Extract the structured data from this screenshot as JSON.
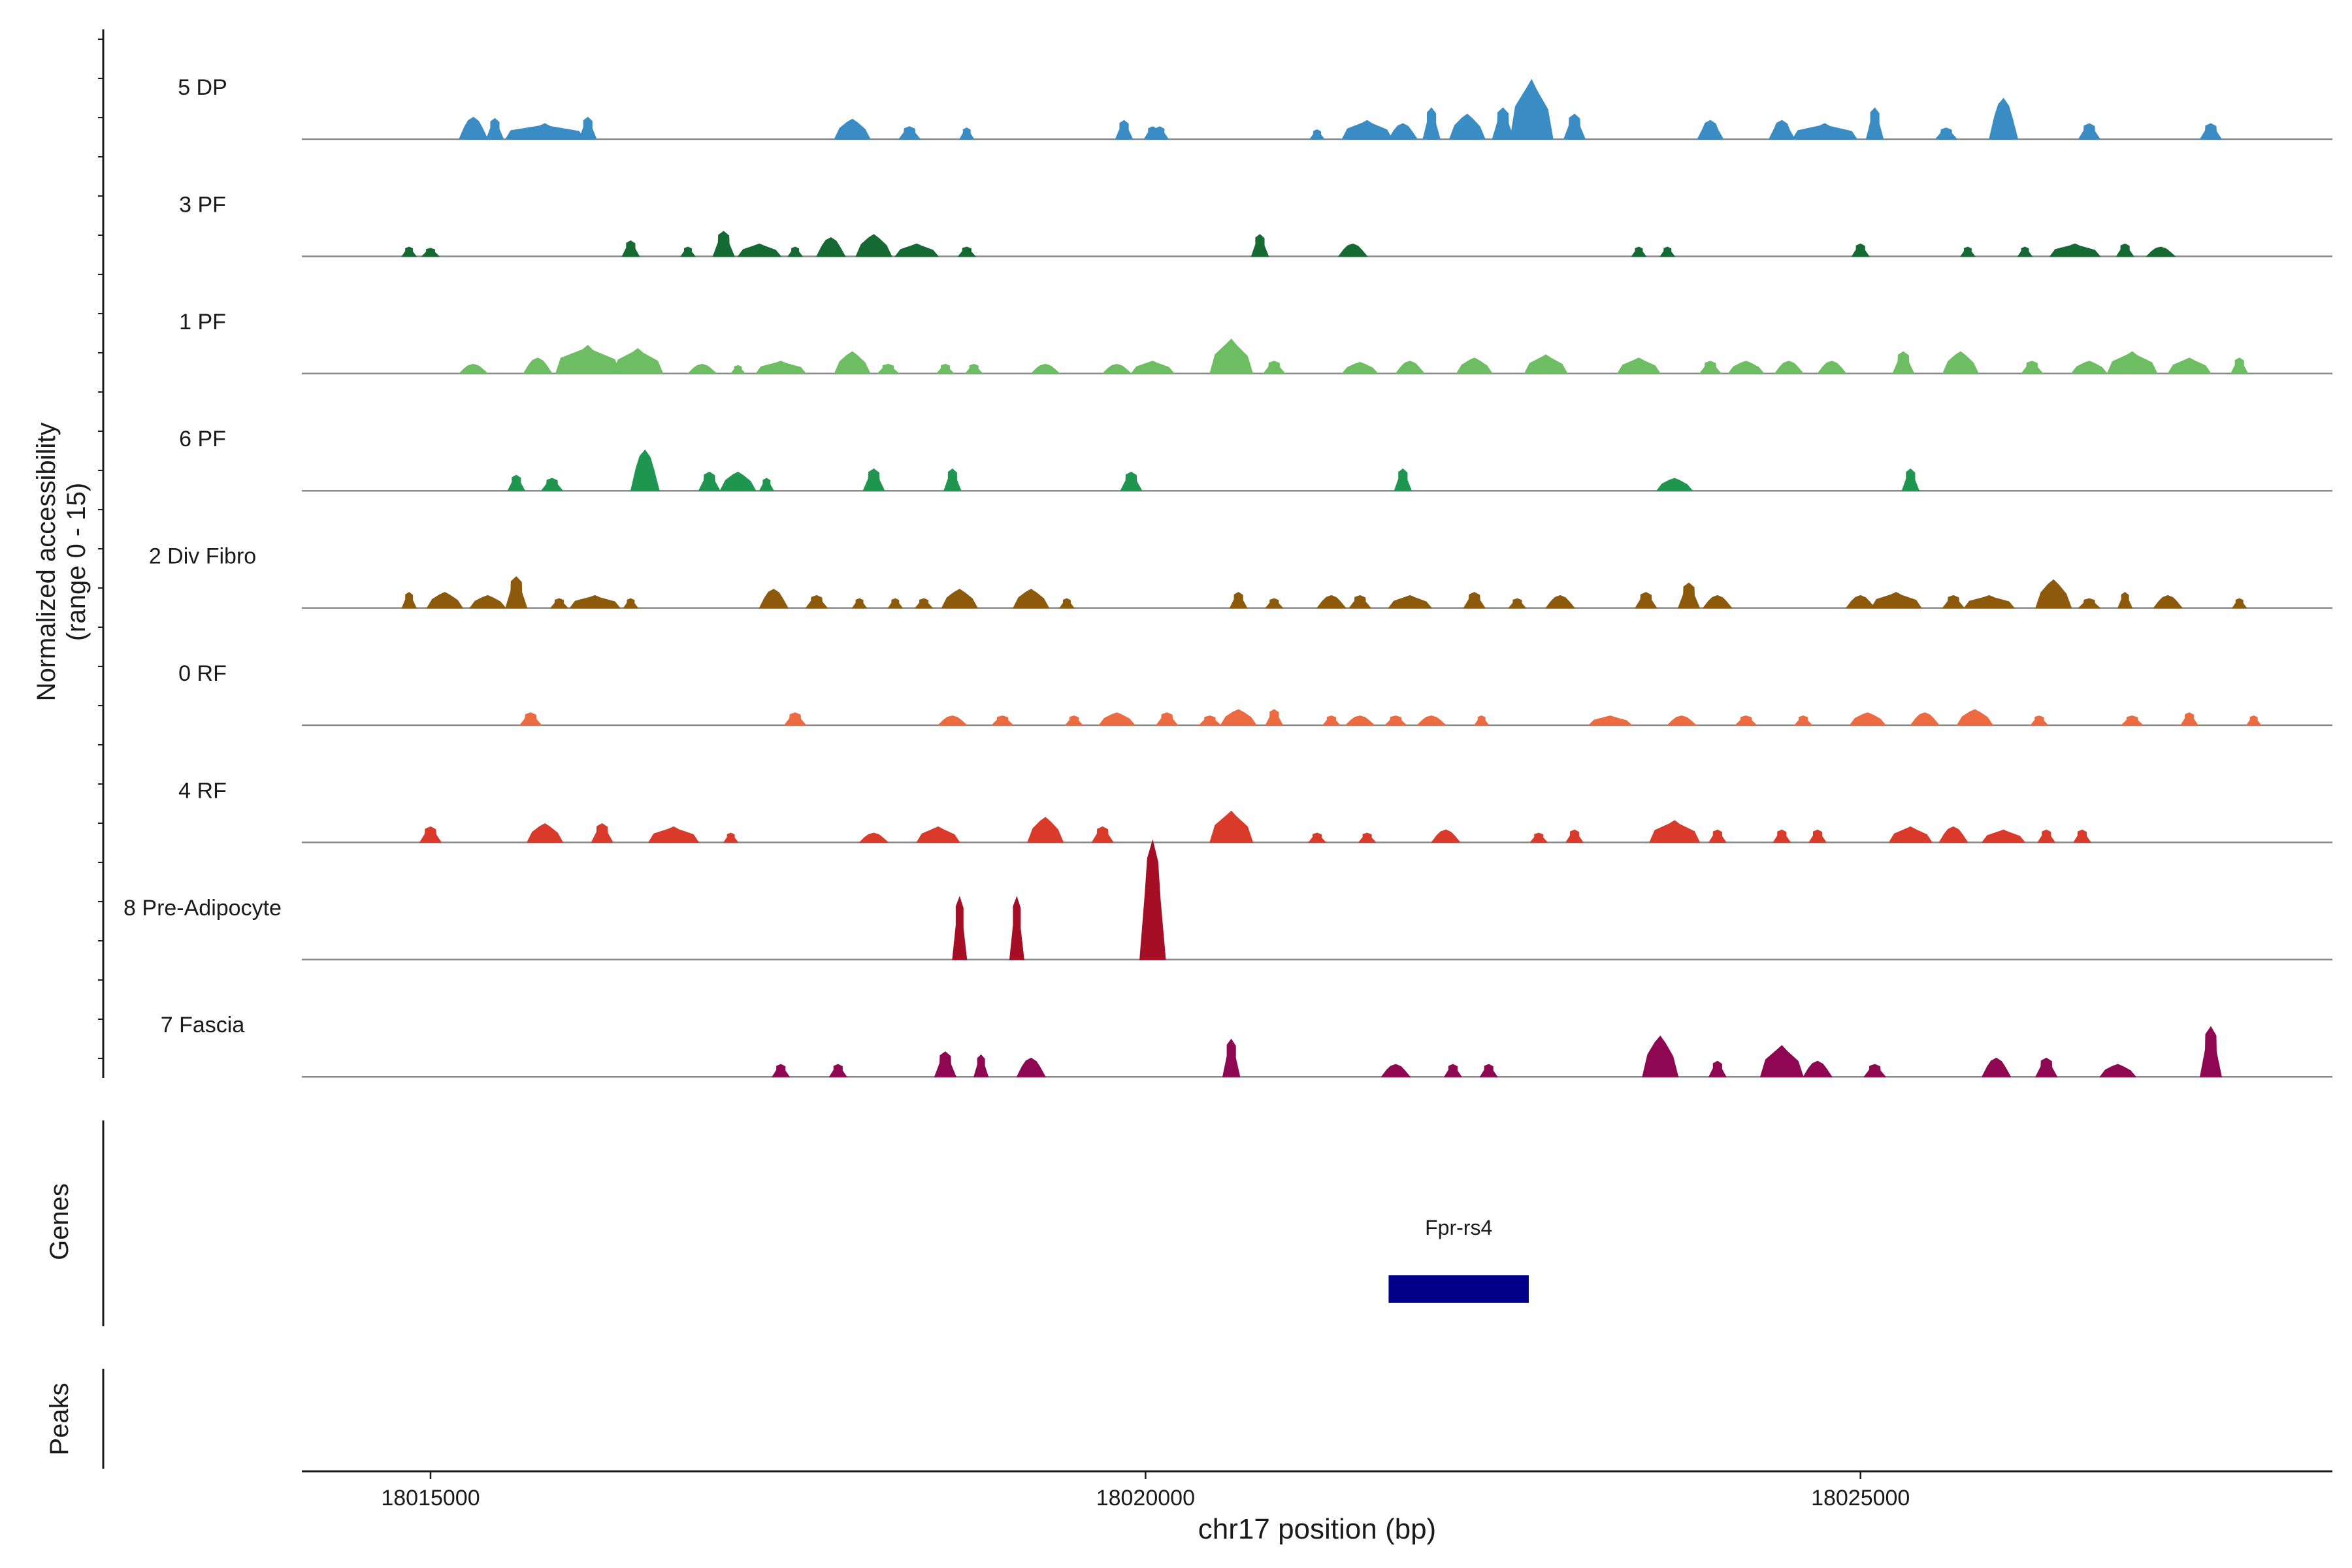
{
  "chart_data": {
    "type": "area",
    "title": "",
    "xlabel": "chr17 position (bp)",
    "ylabel": "Normalized accessibility",
    "ylabel_range": "(range 0 - 15)",
    "xlim": [
      18014100,
      18028300
    ],
    "ylim": [
      0,
      15
    ],
    "x_ticks": [
      18015000,
      18020000,
      18025000
    ],
    "x_tick_labels": [
      "18015000",
      "18020000",
      "18025000"
    ],
    "tracks": [
      {
        "name": "5 DP",
        "color": "#3a8cc4",
        "peaks": [
          [
            18015300,
            0.2,
            3.5
          ],
          [
            18015450,
            0.12,
            3.3
          ],
          [
            18015800,
            0.55,
            2.5
          ],
          [
            18016100,
            0.12,
            3.5
          ],
          [
            18017950,
            0.25,
            3.2
          ],
          [
            18018350,
            0.15,
            2.0
          ],
          [
            18018750,
            0.1,
            1.8
          ],
          [
            18019850,
            0.12,
            3.0
          ],
          [
            18020050,
            0.12,
            2.0
          ],
          [
            18020100,
            0.12,
            2.0
          ],
          [
            18021200,
            0.1,
            1.5
          ],
          [
            18021550,
            0.35,
            3.0
          ],
          [
            18021800,
            0.2,
            2.5
          ],
          [
            18022000,
            0.12,
            5.0
          ],
          [
            18022250,
            0.25,
            4.0
          ],
          [
            18022700,
            0.3,
            9.5
          ],
          [
            18022500,
            0.15,
            5.0
          ],
          [
            18023000,
            0.15,
            4.0
          ],
          [
            18023950,
            0.18,
            3.0
          ],
          [
            18024450,
            0.18,
            3.0
          ],
          [
            18024750,
            0.45,
            2.5
          ],
          [
            18025100,
            0.12,
            5.0
          ],
          [
            18025600,
            0.15,
            1.8
          ],
          [
            18026000,
            0.2,
            6.5
          ],
          [
            18026600,
            0.15,
            2.5
          ],
          [
            18027450,
            0.15,
            2.5
          ]
        ]
      },
      {
        "name": "3 PF",
        "color": "#146a32",
        "peaks": [
          [
            18014850,
            0.1,
            1.5
          ],
          [
            18015000,
            0.12,
            1.3
          ],
          [
            18016400,
            0.12,
            2.5
          ],
          [
            18016800,
            0.1,
            1.5
          ],
          [
            18017050,
            0.15,
            4.0
          ],
          [
            18017300,
            0.3,
            2.0
          ],
          [
            18017550,
            0.1,
            1.5
          ],
          [
            18017800,
            0.2,
            3.0
          ],
          [
            18018100,
            0.25,
            3.5
          ],
          [
            18018400,
            0.3,
            2.0
          ],
          [
            18018750,
            0.12,
            1.5
          ],
          [
            18020800,
            0.12,
            3.5
          ],
          [
            18021450,
            0.2,
            2.0
          ],
          [
            18023450,
            0.1,
            1.5
          ],
          [
            18023650,
            0.1,
            1.5
          ],
          [
            18025000,
            0.12,
            2.0
          ],
          [
            18025750,
            0.1,
            1.5
          ],
          [
            18026150,
            0.1,
            1.5
          ],
          [
            18026500,
            0.35,
            2.0
          ],
          [
            18026850,
            0.12,
            2.0
          ],
          [
            18027100,
            0.2,
            1.5
          ]
        ]
      },
      {
        "name": "1 PF",
        "color": "#6dbe62",
        "peaks": [
          [
            18015300,
            0.2,
            1.5
          ],
          [
            18015750,
            0.2,
            2.5
          ],
          [
            18016100,
            0.45,
            4.5
          ],
          [
            18016450,
            0.35,
            4.0
          ],
          [
            18016900,
            0.2,
            1.5
          ],
          [
            18017150,
            0.1,
            1.3
          ],
          [
            18017450,
            0.35,
            2.0
          ],
          [
            18017950,
            0.25,
            3.5
          ],
          [
            18018200,
            0.15,
            1.5
          ],
          [
            18018600,
            0.12,
            1.5
          ],
          [
            18018800,
            0.12,
            1.5
          ],
          [
            18019300,
            0.2,
            1.5
          ],
          [
            18019800,
            0.2,
            1.5
          ],
          [
            18020050,
            0.3,
            2.0
          ],
          [
            18020600,
            0.3,
            5.5
          ],
          [
            18020900,
            0.15,
            2.0
          ],
          [
            18021500,
            0.25,
            1.8
          ],
          [
            18021850,
            0.2,
            2.0
          ],
          [
            18022300,
            0.25,
            2.5
          ],
          [
            18022800,
            0.3,
            3.0
          ],
          [
            18023450,
            0.3,
            2.5
          ],
          [
            18023950,
            0.15,
            2.0
          ],
          [
            18024200,
            0.25,
            2.0
          ],
          [
            18024500,
            0.2,
            2.0
          ],
          [
            18024800,
            0.2,
            2.0
          ],
          [
            18025300,
            0.15,
            3.5
          ],
          [
            18025700,
            0.25,
            3.5
          ],
          [
            18026200,
            0.15,
            2.0
          ],
          [
            18026600,
            0.25,
            2.0
          ],
          [
            18026900,
            0.35,
            3.5
          ],
          [
            18027300,
            0.3,
            2.5
          ],
          [
            18027650,
            0.12,
            2.5
          ]
        ]
      },
      {
        "name": "6 PF",
        "color": "#1f9650",
        "peaks": [
          [
            18015600,
            0.12,
            2.5
          ],
          [
            18015850,
            0.15,
            2.0
          ],
          [
            18016500,
            0.2,
            6.5
          ],
          [
            18016950,
            0.15,
            3.0
          ],
          [
            18017150,
            0.25,
            3.0
          ],
          [
            18017350,
            0.1,
            2.0
          ],
          [
            18018100,
            0.15,
            3.5
          ],
          [
            18018650,
            0.12,
            3.5
          ],
          [
            18019900,
            0.15,
            3.0
          ],
          [
            18021800,
            0.12,
            3.5
          ],
          [
            18023700,
            0.25,
            2.0
          ],
          [
            18025350,
            0.12,
            3.5
          ]
        ]
      },
      {
        "name": "2 Div Fibro",
        "color": "#8c5a0a",
        "peaks": [
          [
            18014850,
            0.1,
            2.5
          ],
          [
            18015100,
            0.25,
            2.5
          ],
          [
            18015400,
            0.25,
            2.0
          ],
          [
            18015600,
            0.15,
            5.0
          ],
          [
            18015900,
            0.12,
            1.5
          ],
          [
            18016150,
            0.35,
            2.0
          ],
          [
            18016400,
            0.1,
            1.5
          ],
          [
            18017400,
            0.2,
            3.0
          ],
          [
            18017700,
            0.15,
            2.0
          ],
          [
            18018000,
            0.1,
            1.5
          ],
          [
            18018250,
            0.1,
            1.5
          ],
          [
            18018450,
            0.12,
            1.5
          ],
          [
            18018700,
            0.25,
            3.0
          ],
          [
            18019200,
            0.25,
            3.0
          ],
          [
            18019450,
            0.1,
            1.5
          ],
          [
            18020650,
            0.12,
            2.5
          ],
          [
            18020900,
            0.12,
            1.5
          ],
          [
            18021300,
            0.2,
            2.0
          ],
          [
            18021500,
            0.15,
            2.0
          ],
          [
            18021850,
            0.3,
            2.0
          ],
          [
            18022300,
            0.15,
            2.5
          ],
          [
            18022600,
            0.12,
            1.5
          ],
          [
            18022900,
            0.2,
            2.0
          ],
          [
            18023500,
            0.15,
            2.5
          ],
          [
            18023800,
            0.15,
            4.0
          ],
          [
            18024000,
            0.2,
            2.0
          ],
          [
            18025000,
            0.2,
            2.0
          ],
          [
            18025250,
            0.35,
            2.5
          ],
          [
            18025650,
            0.15,
            2.0
          ],
          [
            18025900,
            0.35,
            2.0
          ],
          [
            18026350,
            0.25,
            4.5
          ],
          [
            18026600,
            0.15,
            1.5
          ],
          [
            18026850,
            0.1,
            2.5
          ],
          [
            18027150,
            0.2,
            2.0
          ],
          [
            18027650,
            0.1,
            1.5
          ]
        ]
      },
      {
        "name": "0 RF",
        "color": "#ec6b40",
        "peaks": [
          [
            18015700,
            0.15,
            2.0
          ],
          [
            18017550,
            0.15,
            2.0
          ],
          [
            18018650,
            0.2,
            1.5
          ],
          [
            18019000,
            0.15,
            1.5
          ],
          [
            18019500,
            0.12,
            1.5
          ],
          [
            18019800,
            0.25,
            2.0
          ],
          [
            18020150,
            0.15,
            2.0
          ],
          [
            18020450,
            0.15,
            1.5
          ],
          [
            18020650,
            0.25,
            2.5
          ],
          [
            18020900,
            0.12,
            2.5
          ],
          [
            18021300,
            0.12,
            1.5
          ],
          [
            18021500,
            0.2,
            1.5
          ],
          [
            18021750,
            0.15,
            1.5
          ],
          [
            18022000,
            0.2,
            1.5
          ],
          [
            18022350,
            0.1,
            1.5
          ],
          [
            18023250,
            0.3,
            1.5
          ],
          [
            18023750,
            0.2,
            1.5
          ],
          [
            18024200,
            0.15,
            1.5
          ],
          [
            18024600,
            0.12,
            1.5
          ],
          [
            18025050,
            0.25,
            2.0
          ],
          [
            18025450,
            0.2,
            2.0
          ],
          [
            18025800,
            0.25,
            2.5
          ],
          [
            18026250,
            0.12,
            1.5
          ],
          [
            18026900,
            0.15,
            1.5
          ],
          [
            18027300,
            0.12,
            2.0
          ],
          [
            18027750,
            0.1,
            1.5
          ]
        ]
      },
      {
        "name": "4 RF",
        "color": "#d93a2a",
        "peaks": [
          [
            18015000,
            0.15,
            2.5
          ],
          [
            18015800,
            0.25,
            3.0
          ],
          [
            18016200,
            0.15,
            3.0
          ],
          [
            18016700,
            0.35,
            2.5
          ],
          [
            18017100,
            0.1,
            1.5
          ],
          [
            18018100,
            0.2,
            1.5
          ],
          [
            18018550,
            0.3,
            2.5
          ],
          [
            18019300,
            0.25,
            4.0
          ],
          [
            18019700,
            0.15,
            2.5
          ],
          [
            18020600,
            0.3,
            5.0
          ],
          [
            18021200,
            0.12,
            1.5
          ],
          [
            18021550,
            0.12,
            1.5
          ],
          [
            18022100,
            0.2,
            2.0
          ],
          [
            18022750,
            0.12,
            1.5
          ],
          [
            18023000,
            0.12,
            2.0
          ],
          [
            18023700,
            0.35,
            3.5
          ],
          [
            18024000,
            0.12,
            2.0
          ],
          [
            18024450,
            0.12,
            2.0
          ],
          [
            18024700,
            0.12,
            2.0
          ],
          [
            18025350,
            0.3,
            2.5
          ],
          [
            18025650,
            0.2,
            2.5
          ],
          [
            18026000,
            0.3,
            2.0
          ],
          [
            18026300,
            0.12,
            2.0
          ],
          [
            18026550,
            0.12,
            2.0
          ]
        ]
      },
      {
        "name": "8 Pre-Adipocyte",
        "color": "#a50e25",
        "peaks": [
          [
            18018700,
            0.1,
            10.0
          ],
          [
            18019100,
            0.1,
            10.0
          ],
          [
            18020050,
            0.18,
            19.0
          ]
        ]
      },
      {
        "name": "7 Fascia",
        "color": "#8f0652",
        "peaks": [
          [
            18017450,
            0.12,
            2.0
          ],
          [
            18017850,
            0.12,
            2.0
          ],
          [
            18018600,
            0.15,
            4.0
          ],
          [
            18018850,
            0.1,
            3.5
          ],
          [
            18019200,
            0.2,
            3.0
          ],
          [
            18020600,
            0.12,
            6.0
          ],
          [
            18021750,
            0.2,
            2.0
          ],
          [
            18022150,
            0.12,
            2.0
          ],
          [
            18022400,
            0.12,
            2.0
          ],
          [
            18023600,
            0.25,
            6.5
          ],
          [
            18024450,
            0.3,
            5.0
          ],
          [
            18024000,
            0.12,
            2.5
          ],
          [
            18024700,
            0.2,
            2.5
          ],
          [
            18025100,
            0.15,
            2.0
          ],
          [
            18025950,
            0.2,
            3.0
          ],
          [
            18026300,
            0.15,
            3.0
          ],
          [
            18026800,
            0.25,
            2.0
          ],
          [
            18027450,
            0.15,
            8.0
          ]
        ]
      }
    ]
  },
  "genes": {
    "label": "Genes",
    "items": [
      {
        "name": "Fpr-rs4",
        "start": 18021700,
        "end": 18022680,
        "color": "#00008b"
      }
    ]
  },
  "peaks_track": {
    "label": "Peaks",
    "items": []
  },
  "style": {
    "baseline_color": "#8a8a8a",
    "axis_color": "#1a1a1a"
  }
}
